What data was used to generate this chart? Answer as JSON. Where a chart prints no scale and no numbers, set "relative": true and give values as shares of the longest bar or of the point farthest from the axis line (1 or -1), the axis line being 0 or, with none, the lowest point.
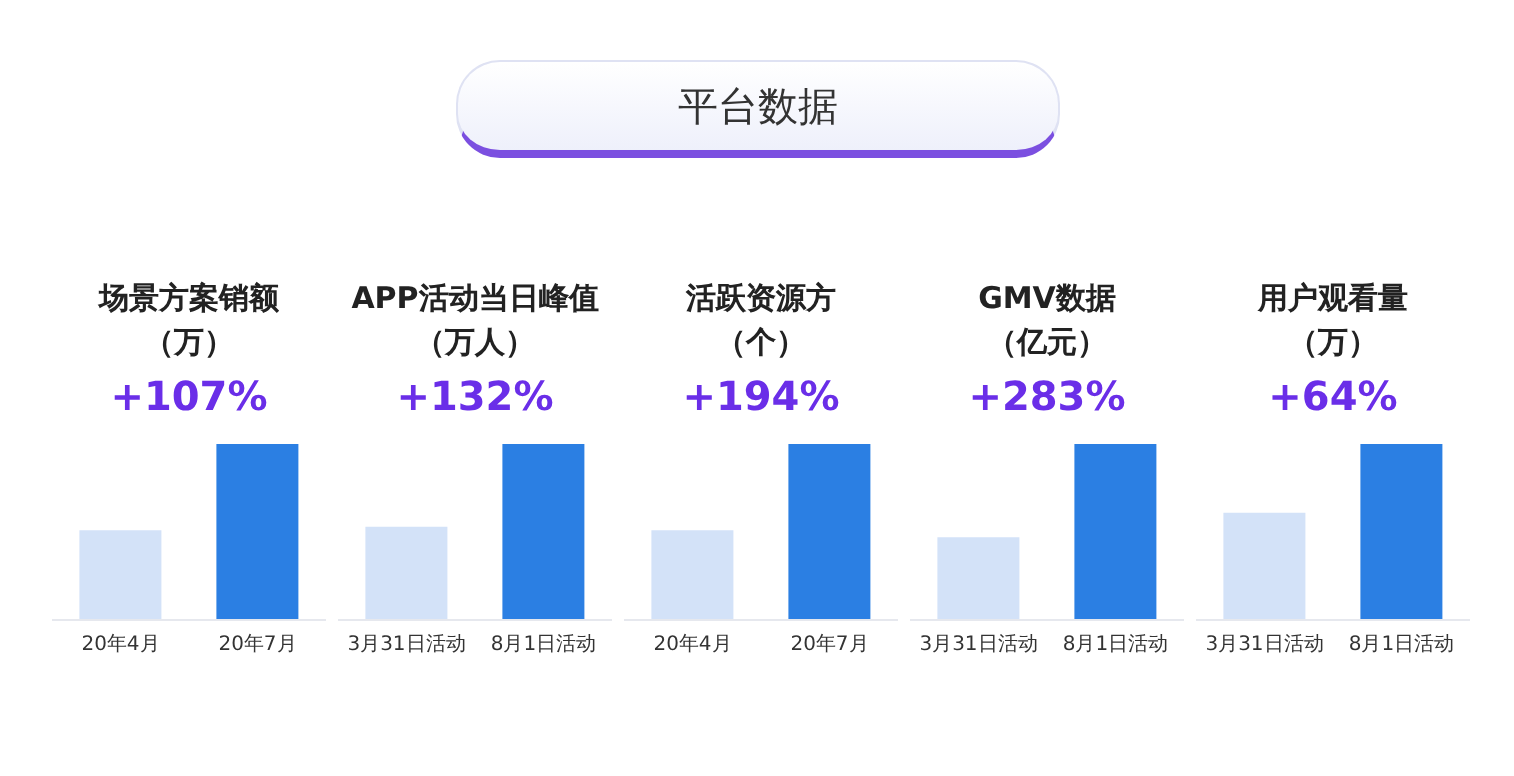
{
  "chart_data": [
    {
      "type": "other",
      "title": "平台数据"
    },
    {
      "type": "bar",
      "title": "场景方案销额",
      "subtitle": "（万）",
      "annotations": [
        "+107%"
      ],
      "relative": true,
      "categories": [
        "20年4月",
        "20年7月"
      ],
      "values": [
        0.51,
        1
      ],
      "colors": [
        "#d3e2f8",
        "#2b7fe3"
      ]
    },
    {
      "type": "bar",
      "title": "APP活动当日峰值",
      "subtitle": "（万人）",
      "annotations": [
        "+132%"
      ],
      "relative": true,
      "categories": [
        "3月31日活动",
        "8月1日活动"
      ],
      "values": [
        0.53,
        1
      ],
      "colors": [
        "#d3e2f8",
        "#2b7fe3"
      ]
    },
    {
      "type": "bar",
      "title": "活跃资源方",
      "subtitle": "（个）",
      "annotations": [
        "+194%"
      ],
      "relative": true,
      "categories": [
        "20年4月",
        "20年7月"
      ],
      "values": [
        0.51,
        1
      ],
      "colors": [
        "#d3e2f8",
        "#2b7fe3"
      ]
    },
    {
      "type": "bar",
      "title": "GMV数据",
      "subtitle": "（亿元）",
      "annotations": [
        "+283%"
      ],
      "relative": true,
      "categories": [
        "3月31日活动",
        "8月1日活动"
      ],
      "values": [
        0.47,
        1
      ],
      "colors": [
        "#d3e2f8",
        "#2b7fe3"
      ]
    },
    {
      "type": "bar",
      "title": "用户观看量",
      "subtitle": "（万）",
      "annotations": [
        "+64%"
      ],
      "relative": true,
      "categories": [
        "3月31日活动",
        "8月1日活动"
      ],
      "values": [
        0.61,
        1
      ],
      "colors": [
        "#d3e2f8",
        "#2b7fe3"
      ]
    }
  ]
}
